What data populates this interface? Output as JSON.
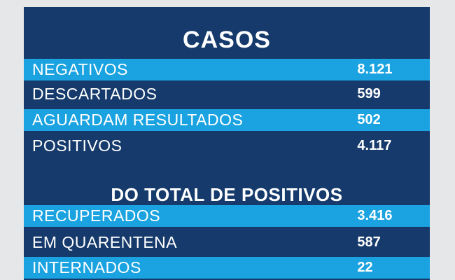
{
  "casos": {
    "title": "CASOS",
    "rows": [
      {
        "label": "NEGATIVOS",
        "value": "8.121"
      },
      {
        "label": "DESCARTADOS",
        "value": "599"
      },
      {
        "label": "AGUARDAM RESULTADOS",
        "value": "502"
      },
      {
        "label": "POSITIVOS",
        "value": "4.117"
      }
    ]
  },
  "positivos": {
    "title": "DO TOTAL DE POSITIVOS",
    "rows": [
      {
        "label": "RECUPERADOS",
        "value": "3.416"
      },
      {
        "label": "EM QUARENTENA",
        "value": "587"
      },
      {
        "label": "INTERNADOS",
        "value": "22"
      }
    ]
  },
  "colors": {
    "background": "#e6e7e9",
    "navy": "#153a6b",
    "cyan": "#1aa3e0",
    "text": "#ffffff"
  }
}
